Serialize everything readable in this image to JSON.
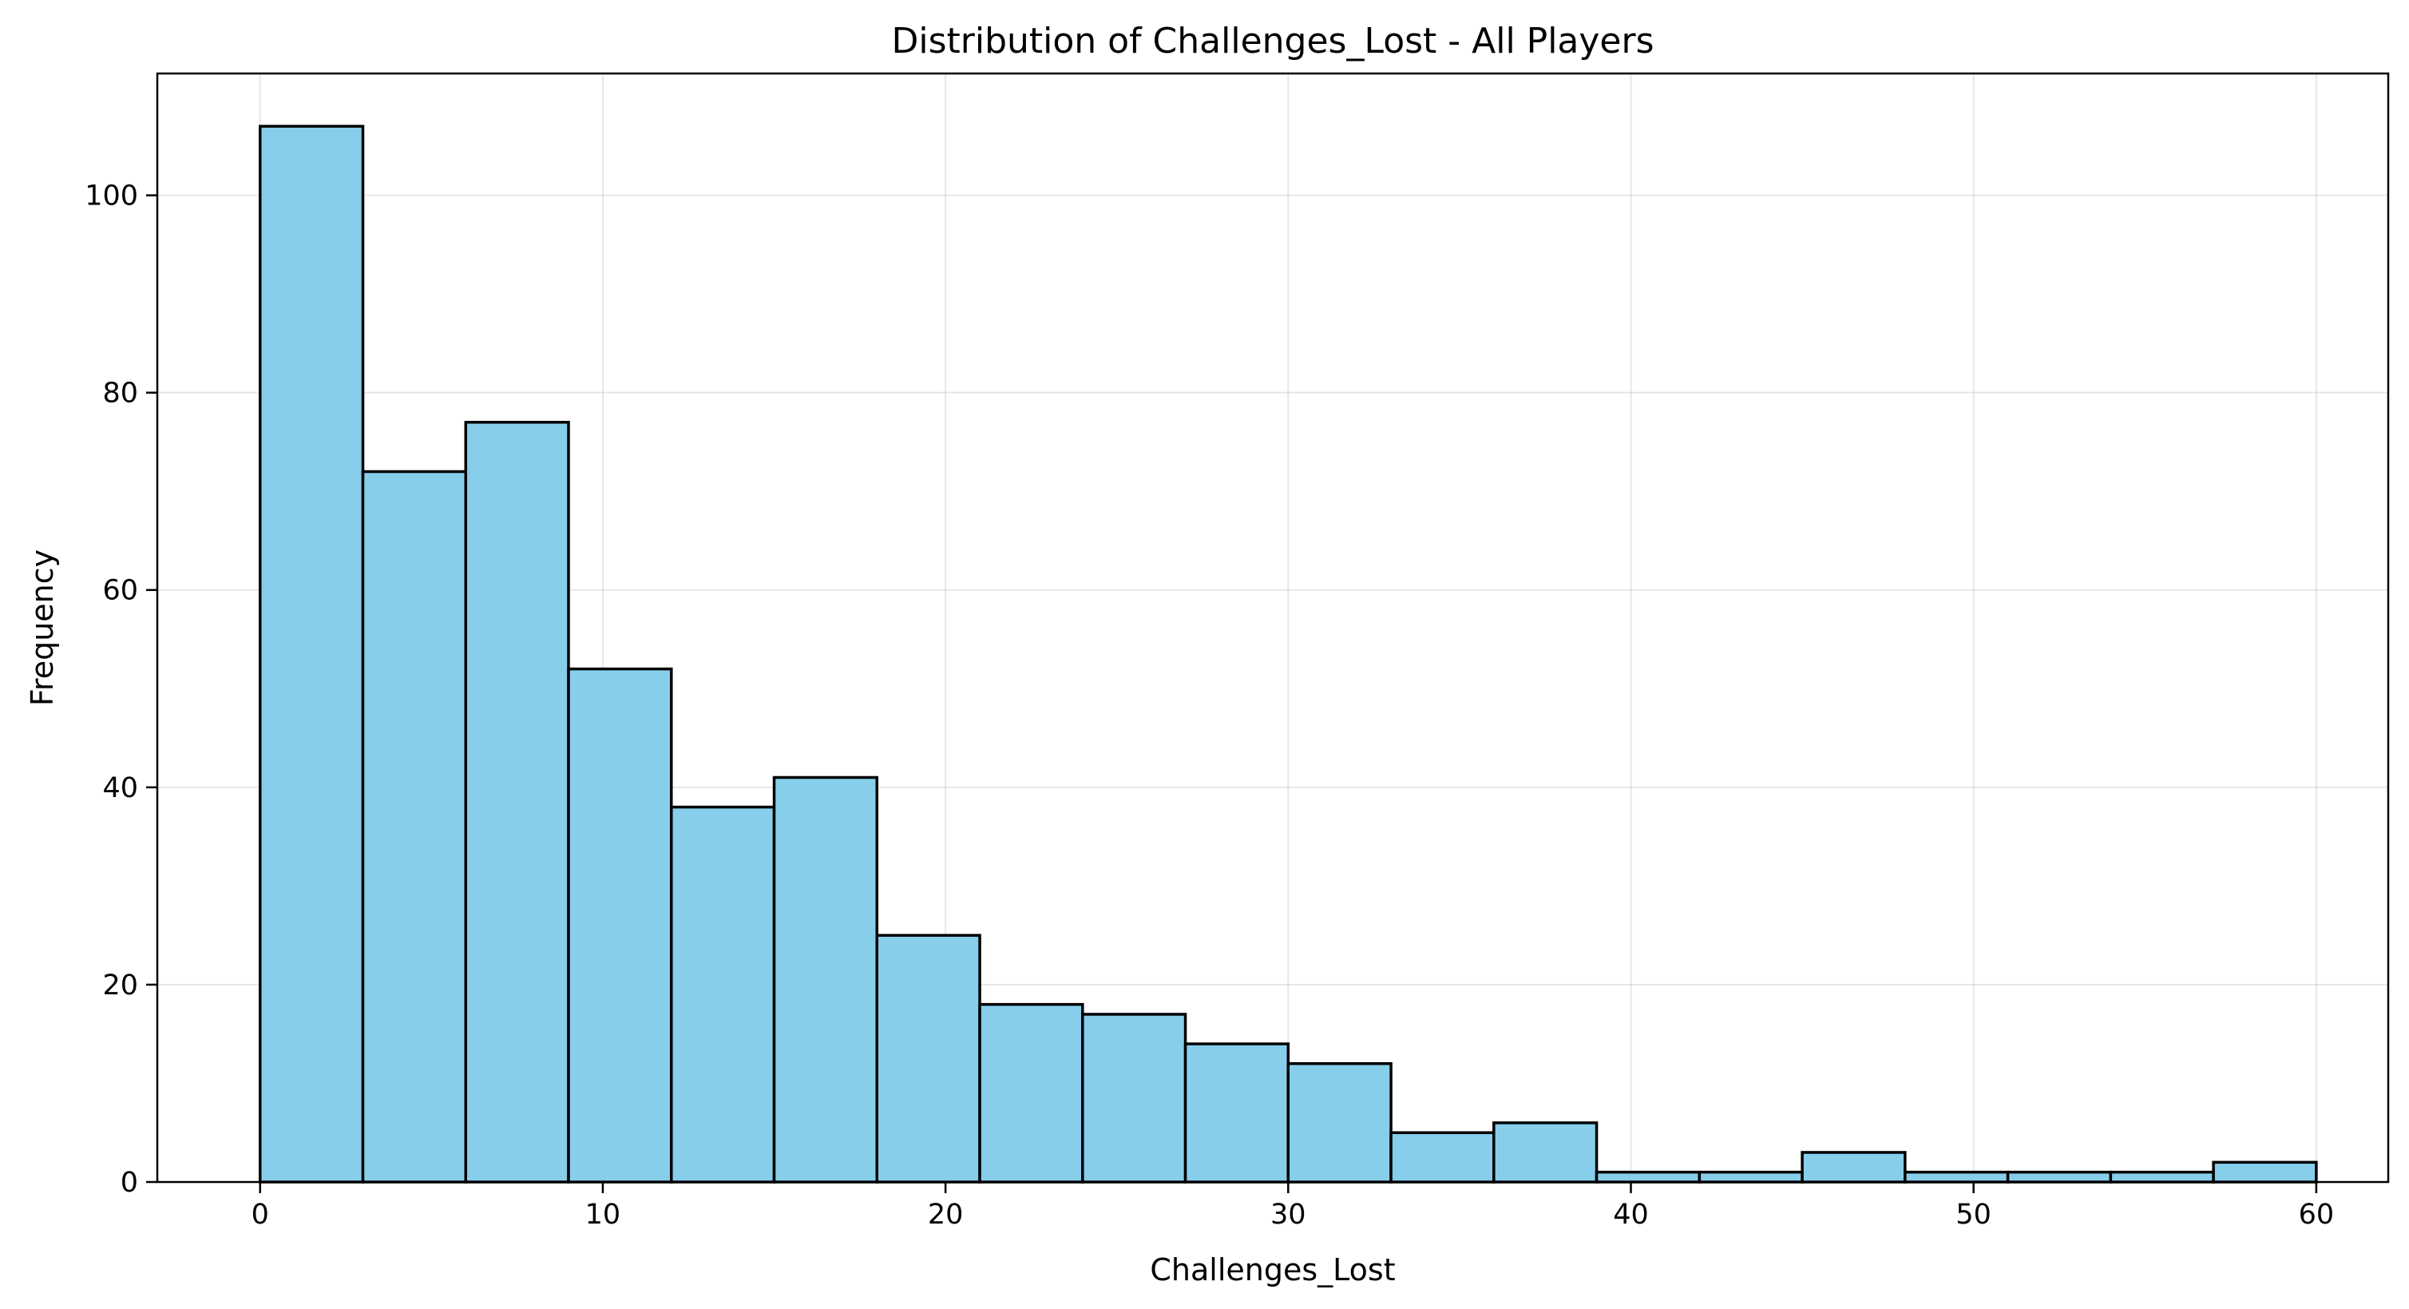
{
  "chart_data": {
    "type": "bar",
    "title": "Distribution of Challenges_Lost - All Players",
    "xlabel": "Challenges_Lost",
    "ylabel": "Frequency",
    "bin_edges": [
      0,
      3,
      6,
      9,
      12,
      15,
      18,
      21,
      24,
      27,
      30,
      33,
      36,
      39,
      42,
      45,
      48,
      51,
      54,
      57,
      60
    ],
    "values": [
      107,
      72,
      77,
      52,
      38,
      41,
      25,
      18,
      17,
      14,
      12,
      5,
      6,
      1,
      1,
      3,
      1,
      1,
      1,
      2
    ],
    "xlim": [
      -3,
      62.1
    ],
    "ylim": [
      0,
      112.35
    ],
    "xticks": [
      0,
      10,
      20,
      30,
      40,
      50,
      60
    ],
    "yticks": [
      0,
      20,
      40,
      60,
      80,
      100
    ],
    "grid": true,
    "bar_color": "#87ceeb",
    "edge_color": "#000000"
  }
}
